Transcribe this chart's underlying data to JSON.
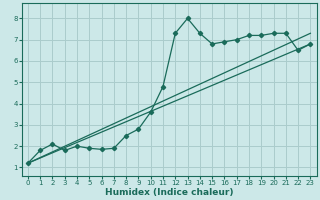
{
  "xlabel": "Humidex (Indice chaleur)",
  "bg_color": "#cce8e8",
  "grid_color": "#aacccc",
  "line_color": "#1a6b5a",
  "xlim": [
    -0.5,
    23.5
  ],
  "ylim": [
    0.6,
    8.7
  ],
  "xticks": [
    0,
    1,
    2,
    3,
    4,
    5,
    6,
    7,
    8,
    9,
    10,
    11,
    12,
    13,
    14,
    15,
    16,
    17,
    18,
    19,
    20,
    21,
    22,
    23
  ],
  "yticks": [
    1,
    2,
    3,
    4,
    5,
    6,
    7,
    8
  ],
  "line1_x": [
    0,
    1,
    2,
    3,
    4,
    5,
    6,
    7,
    8,
    9,
    10,
    11,
    12,
    13,
    14,
    15,
    16,
    17,
    18,
    19,
    20,
    21,
    22,
    23
  ],
  "line1_y": [
    1.2,
    1.8,
    2.1,
    1.8,
    2.0,
    1.9,
    1.85,
    1.9,
    2.5,
    2.8,
    3.6,
    4.8,
    7.3,
    8.0,
    7.3,
    6.8,
    6.9,
    7.0,
    7.2,
    7.2,
    7.3,
    7.3,
    6.5,
    6.8
  ],
  "line2_x": [
    0,
    23
  ],
  "line2_y": [
    1.2,
    6.8
  ],
  "line3_x": [
    0,
    23
  ],
  "line3_y": [
    1.2,
    7.3
  ]
}
